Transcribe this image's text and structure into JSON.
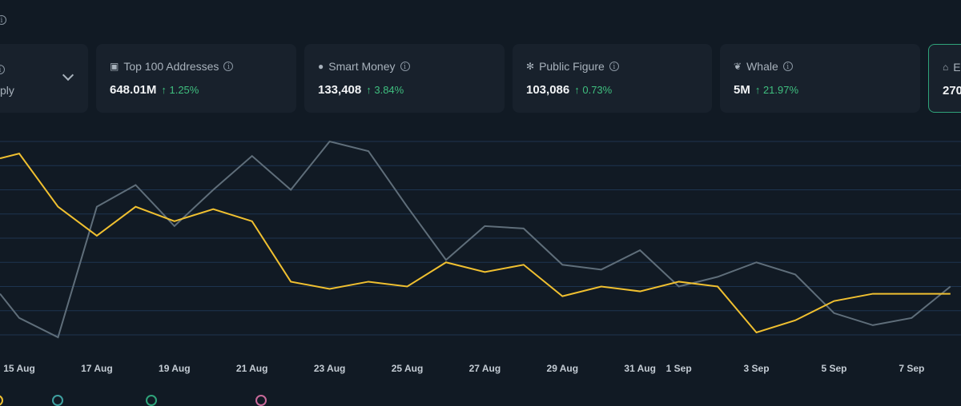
{
  "colors": {
    "accent_border": "#2fa37a",
    "positive": "#3fbf7f",
    "series_primary": "#f0c030",
    "series_secondary": "#5f6e7a",
    "grid": "#1e3450"
  },
  "cards": [
    {
      "label": "",
      "value": "",
      "change": "",
      "sub": "ply",
      "icon": "info-icon"
    },
    {
      "label": "Top 100 Addresses",
      "value": "648.01M",
      "change": "↑ 1.25%",
      "icon": "money-icon"
    },
    {
      "label": "Smart Money",
      "value": "133,408",
      "change": "↑ 3.84%",
      "icon": "sunglasses-icon"
    },
    {
      "label": "Public Figure",
      "value": "103,086",
      "change": "↑ 0.73%",
      "icon": "lightbulb-icon"
    },
    {
      "label": "Whale",
      "value": "5M",
      "change": "↑ 21.97%",
      "icon": "whale-icon"
    },
    {
      "label": "E",
      "value": "270",
      "change": "",
      "icon": "bank-icon"
    }
  ],
  "chart_data": {
    "type": "line",
    "grid": true,
    "ylim": [
      0,
      8
    ],
    "x": [
      "14 Aug",
      "15 Aug",
      "16 Aug",
      "17 Aug",
      "18 Aug",
      "19 Aug",
      "20 Aug",
      "21 Aug",
      "22 Aug",
      "23 Aug",
      "24 Aug",
      "25 Aug",
      "26 Aug",
      "27 Aug",
      "28 Aug",
      "29 Aug",
      "30 Aug",
      "31 Aug",
      "1 Sep",
      "2 Sep",
      "3 Sep",
      "4 Sep",
      "5 Sep",
      "6 Sep",
      "7 Sep",
      "8 Sep"
    ],
    "tick_labels": [
      "15 Aug",
      "17 Aug",
      "19 Aug",
      "21 Aug",
      "23 Aug",
      "25 Aug",
      "27 Aug",
      "29 Aug",
      "31 Aug",
      "1 Sep",
      "3 Sep",
      "5 Sep",
      "7 Sep"
    ],
    "series": [
      {
        "color": "#f0c030",
        "values": [
          7.3,
          7.5,
          5.3,
          4.1,
          5.3,
          4.7,
          5.2,
          4.7,
          2.2,
          1.9,
          2.2,
          2.0,
          3.0,
          2.6,
          2.9,
          1.6,
          2.0,
          1.8,
          2.2,
          2.0,
          0.1,
          0.6,
          1.4,
          1.7,
          1.7,
          1.7
        ]
      },
      {
        "color": "#5f6e7a",
        "values": [
          1.7,
          0.7,
          -0.1,
          5.3,
          6.2,
          4.5,
          6.0,
          7.4,
          6.0,
          8.0,
          7.6,
          5.3,
          3.1,
          4.5,
          4.4,
          2.9,
          2.7,
          3.5,
          2.0,
          2.4,
          3.0,
          2.5,
          0.9,
          0.4,
          0.7,
          2.0
        ]
      }
    ]
  }
}
